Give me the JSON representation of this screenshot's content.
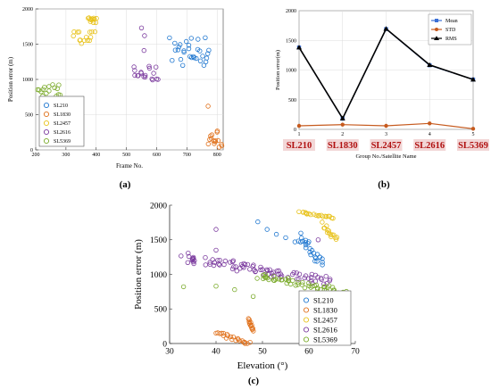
{
  "figure": {
    "panel_labels": [
      "(a)",
      "(b)",
      "(c)"
    ]
  },
  "chart_data": [
    {
      "panel": "(a)",
      "type": "scatter",
      "xlabel": "Frame No.",
      "ylabel": "Position error (m)",
      "xlim": [
        200,
        820
      ],
      "ylim": [
        0,
        2000
      ],
      "xticks": [
        200,
        300,
        400,
        500,
        600,
        700,
        800
      ],
      "yticks": [
        0,
        500,
        1000,
        1500,
        2000
      ],
      "grid": true,
      "legend_position": "bottom-left",
      "series": [
        {
          "name": "SL210",
          "color": "#1f77d0",
          "clusters": [
            {
              "x": [
                650,
                775
              ],
              "y": [
                1150,
                1650
              ]
            }
          ]
        },
        {
          "name": "SL1830",
          "color": "#e0701a",
          "clusters": [
            {
              "x": [
                770,
                815
              ],
              "y": [
                0,
                320
              ]
            }
          ],
          "points": [
            {
              "x": 770,
              "y": 620
            }
          ]
        },
        {
          "name": "SL2457",
          "color": "#e8c21a",
          "clusters": [
            {
              "x": [
                325,
                395
              ],
              "y": [
                1500,
                1700
              ]
            },
            {
              "x": [
                375,
                400
              ],
              "y": [
                1800,
                1880
              ]
            }
          ]
        },
        {
          "name": "SL2616",
          "color": "#7b3a9e",
          "clusters": [
            {
              "x": [
                520,
                605
              ],
              "y": [
                950,
                1200
              ]
            }
          ],
          "points": [
            {
              "x": 550,
              "y": 1730
            },
            {
              "x": 560,
              "y": 1620
            },
            {
              "x": 558,
              "y": 1410
            }
          ]
        },
        {
          "name": "SL5369",
          "color": "#7aaa2a",
          "clusters": [
            {
              "x": [
                205,
                285
              ],
              "y": [
                750,
                950
              ]
            }
          ]
        }
      ]
    },
    {
      "panel": "(b)",
      "type": "line",
      "xlabel": "Group No./Satellite Name",
      "ylabel": "Position error(m)",
      "x": [
        1,
        2,
        3,
        4,
        5
      ],
      "xlim": [
        1,
        5
      ],
      "ylim": [
        0,
        2000
      ],
      "yticks": [
        0,
        500,
        1000,
        1500,
        2000
      ],
      "categories": [
        "SL210",
        "SL1830",
        "SL2457",
        "SL2616",
        "SL5369"
      ],
      "grid": true,
      "legend_position": "top-right",
      "series": [
        {
          "name": "Mean",
          "color": "#3a6fd6",
          "values": [
            1380,
            180,
            1690,
            1080,
            840
          ]
        },
        {
          "name": "STD",
          "color": "#c65a1e",
          "values": [
            60,
            80,
            60,
            100,
            10
          ]
        },
        {
          "name": "RMS",
          "color": "#000000",
          "values": [
            1380,
            185,
            1695,
            1085,
            840
          ]
        }
      ]
    },
    {
      "panel": "(c)",
      "type": "scatter",
      "xlabel": "Elevation (°)",
      "ylabel": "Position error (m)",
      "xlim": [
        30,
        70
      ],
      "ylim": [
        0,
        2000
      ],
      "xticks": [
        30,
        40,
        50,
        60,
        70
      ],
      "yticks": [
        0,
        500,
        1000,
        1500,
        2000
      ],
      "grid": false,
      "legend_position": "bottom-right",
      "series": [
        {
          "name": "SL210",
          "color": "#1f77d0",
          "clusters": [
            {
              "x": [
                58,
                63
              ],
              "y": [
                1150,
                1550
              ]
            }
          ],
          "trail": [
            [
              49,
              1760
            ],
            [
              51,
              1650
            ],
            [
              53,
              1580
            ],
            [
              55,
              1530
            ],
            [
              57,
              1470
            ]
          ]
        },
        {
          "name": "SL1830",
          "color": "#e0701a",
          "clusters": [
            {
              "x": [
                40,
                47
              ],
              "y": [
                0,
                150
              ]
            },
            {
              "x": [
                47,
                48
              ],
              "y": [
                200,
                350
              ]
            }
          ]
        },
        {
          "name": "SL2457",
          "color": "#e8c21a",
          "clusters": [
            {
              "x": [
                58,
                65
              ],
              "y": [
                1820,
                1900
              ]
            },
            {
              "x": [
                63,
                66
              ],
              "y": [
                1500,
                1720
              ]
            }
          ]
        },
        {
          "name": "SL2616",
          "color": "#7b3a9e",
          "clusters": [
            {
              "x": [
                33,
                64
              ],
              "y": [
                900,
                1250
              ]
            }
          ],
          "points": [
            {
              "x": 40,
              "y": 1650
            },
            {
              "x": 40,
              "y": 1350
            },
            {
              "x": 62,
              "y": 1500
            }
          ]
        },
        {
          "name": "SL5369",
          "color": "#7aaa2a",
          "clusters": [
            {
              "x": [
                49,
                67
              ],
              "y": [
                750,
                980
              ]
            }
          ],
          "points": [
            {
              "x": 33,
              "y": 820
            },
            {
              "x": 40,
              "y": 830
            },
            {
              "x": 44,
              "y": 780
            },
            {
              "x": 48,
              "y": 680
            }
          ]
        }
      ]
    }
  ]
}
